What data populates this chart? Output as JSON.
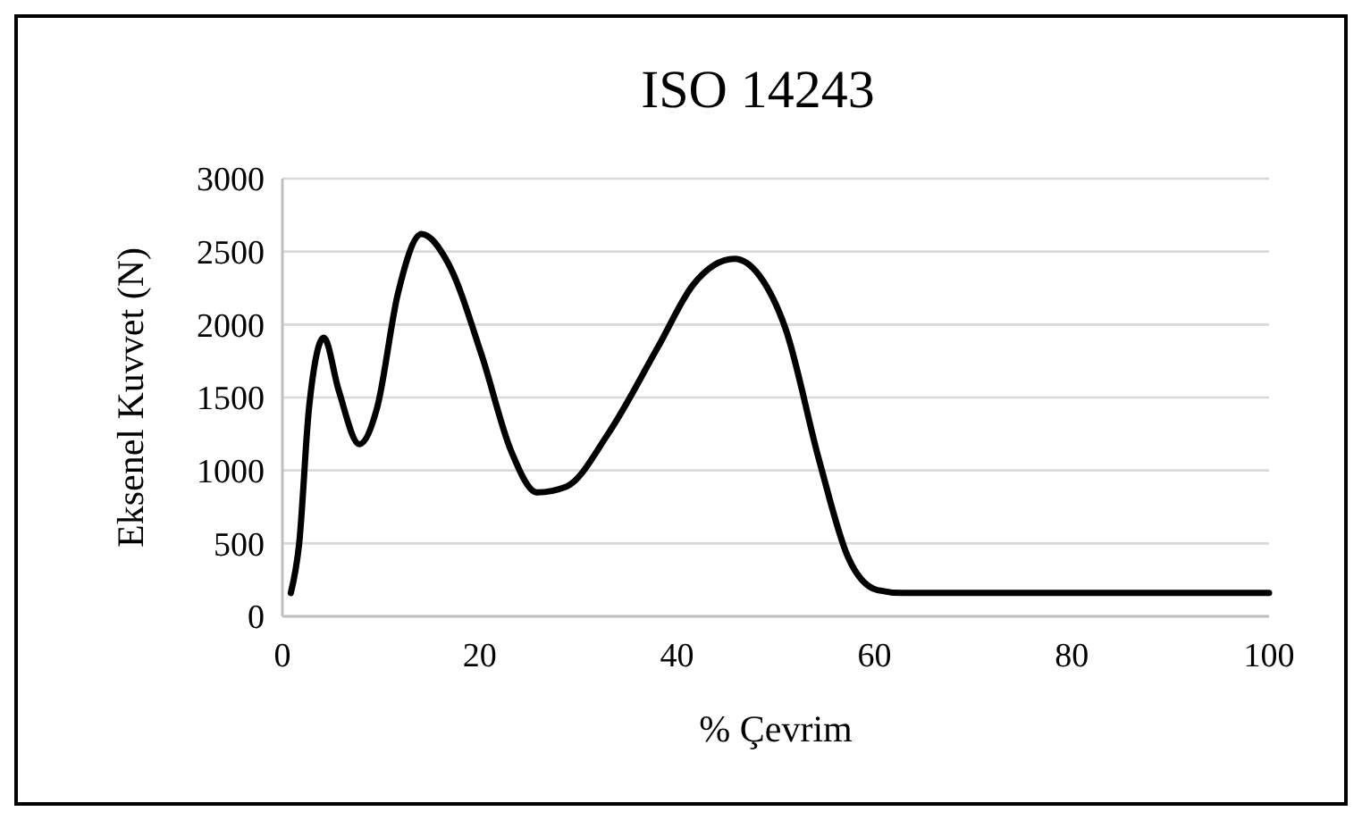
{
  "chart_data": {
    "type": "line",
    "title": "ISO 14243",
    "xlabel": "% Çevrim",
    "ylabel": "Eksenel Kuvvet (N)",
    "x": [
      0.85,
      1.7,
      2.7,
      4.2,
      5.7,
      7.8,
      9.6,
      11.7,
      14.1,
      16.8,
      20.2,
      23.2,
      25.8,
      28.8,
      33,
      38.1,
      41.6,
      45.8,
      48.4,
      51,
      54.4,
      57.3,
      60.3,
      62.9,
      70,
      80,
      90,
      100
    ],
    "series": [
      {
        "color": "#000000",
        "values": [
          160,
          500,
          1430,
          1910,
          1550,
          1180,
          1430,
          2210,
          2620,
          2420,
          1790,
          1130,
          850,
          890,
          1250,
          1850,
          2270,
          2450,
          2330,
          1970,
          1070,
          410,
          180,
          160,
          160,
          160,
          160,
          160
        ]
      }
    ],
    "xlim": [
      0,
      100
    ],
    "xticks": [
      0,
      20,
      40,
      60,
      80,
      100
    ],
    "ylim": [
      0,
      3000
    ],
    "yticks": [
      0,
      500,
      1000,
      1500,
      2000,
      2500,
      3000
    ],
    "grid": "y",
    "marker": "none",
    "line_style": "solid"
  }
}
